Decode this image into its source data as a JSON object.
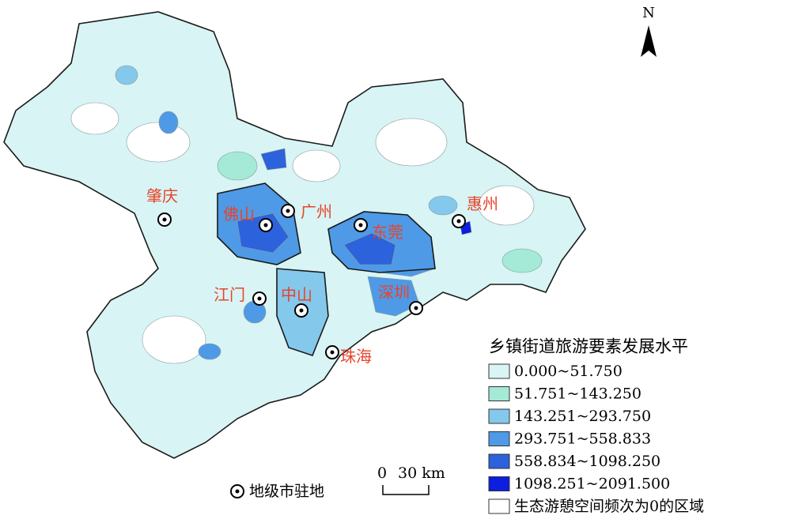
{
  "north": "N",
  "cities": [
    {
      "name": "肇庆"
    },
    {
      "name": "佛山"
    },
    {
      "name": "广州"
    },
    {
      "name": "东莞"
    },
    {
      "name": "惠州"
    },
    {
      "name": "江门"
    },
    {
      "name": "中山"
    },
    {
      "name": "深圳"
    },
    {
      "name": "珠海"
    }
  ],
  "legend": {
    "title": "乡镇街道旅游要素发展水平",
    "items": [
      {
        "label": "0.000~51.750",
        "color": "#d8f4f4"
      },
      {
        "label": "51.751~143.250",
        "color": "#a4ead6"
      },
      {
        "label": "143.251~293.750",
        "color": "#84c8ec"
      },
      {
        "label": "293.751~558.833",
        "color": "#4e9ae6"
      },
      {
        "label": "558.834~1098.250",
        "color": "#2c62dc"
      },
      {
        "label": "1098.251~2091.500",
        "color": "#0c1ee0"
      },
      {
        "label": "生态游憩空间频次为0的区域",
        "color": "#ffffff"
      }
    ]
  },
  "marker_legend": "地级市驻地",
  "scale": {
    "zero": "0",
    "label": "30 km"
  }
}
